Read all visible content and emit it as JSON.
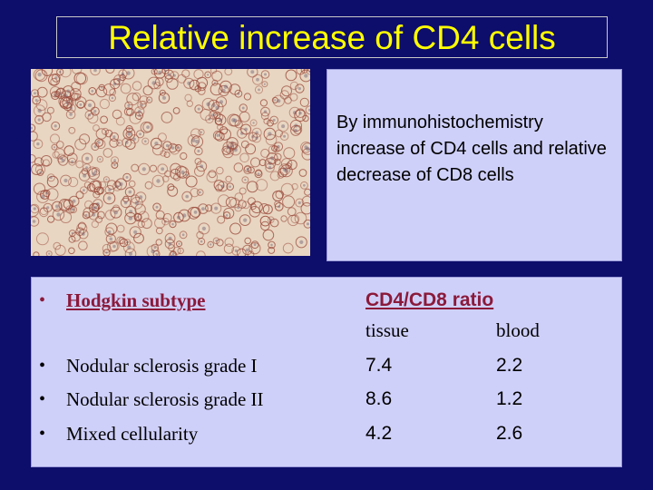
{
  "slide": {
    "title": "Relative increase of CD4 cells",
    "caption": "By immunohistochemistry increase of CD4 cells and relative decrease of CD8 cells",
    "micrograph": {
      "icon": "immunohistochemistry-micrograph",
      "colors": {
        "background": "#e8d6c2",
        "membrane": "#9b4b3c",
        "nucleus": "#6d5f74"
      }
    },
    "table": {
      "header": {
        "subtype": "Hodgkin subtype",
        "ratio": "CD4/CD8 ratio"
      },
      "subheader": {
        "tissue": "tissue",
        "blood": "blood"
      },
      "rows": [
        {
          "subtype": "Nodular sclerosis grade I",
          "tissue": "7.4",
          "blood": "2.2"
        },
        {
          "subtype": "Nodular sclerosis grade II",
          "tissue": "8.6",
          "blood": "1.2"
        },
        {
          "subtype": "Mixed cellularity",
          "tissue": "4.2",
          "blood": "2.6"
        }
      ],
      "bullet": "•"
    },
    "colors": {
      "background": "#0d0d6b",
      "title": "#ffff00",
      "panel": "#cfd0fa",
      "header_text": "#8b1a3a"
    }
  }
}
